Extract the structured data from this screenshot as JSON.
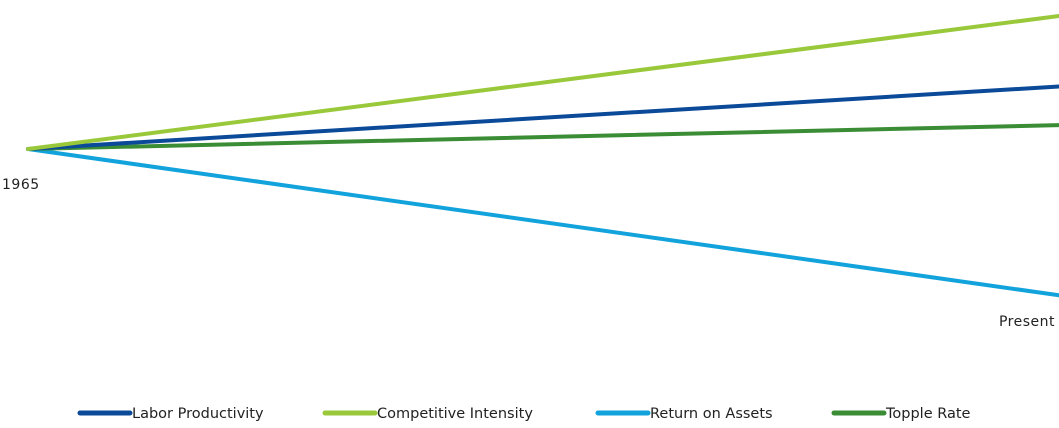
{
  "chart_data": {
    "type": "line",
    "x": [
      "1965",
      "Present"
    ],
    "start_label": "1965",
    "end_label": "Present",
    "series": [
      {
        "name": "Labor Productivity",
        "color": "#0b4a98",
        "values": [
          0,
          0.47
        ]
      },
      {
        "name": "Competitive Intensity",
        "color": "#99c93b",
        "values": [
          0,
          1.0
        ]
      },
      {
        "name": "Return on Assets",
        "color": "#12a3dc",
        "values": [
          0,
          -1.1
        ]
      },
      {
        "name": "Topple Rate",
        "color": "#3a8d35",
        "values": [
          0,
          0.18
        ]
      }
    ],
    "ylim": [
      -1.1,
      1.0
    ],
    "grid": false,
    "legend_position": "bottom"
  }
}
